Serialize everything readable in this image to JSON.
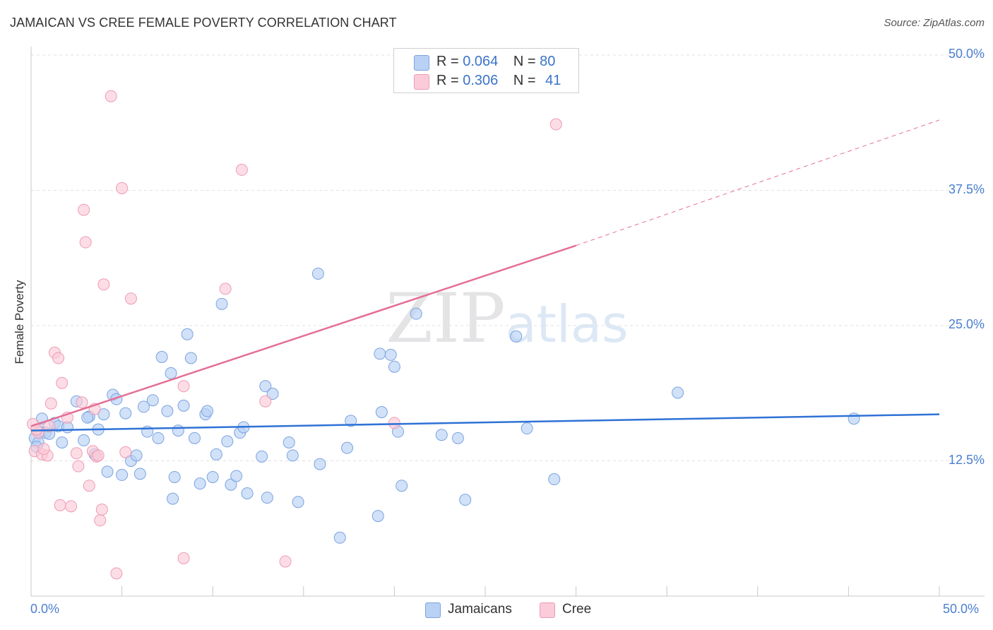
{
  "chart_data": {
    "type": "scatter",
    "title": "JAMAICAN VS CREE FEMALE POVERTY CORRELATION CHART",
    "source": "Source: ZipAtlas.com",
    "xlabel": "",
    "ylabel": "Female Poverty",
    "xlim": [
      0,
      50
    ],
    "ylim": [
      0,
      50
    ],
    "x_tick_labels": [
      "0.0%",
      "50.0%"
    ],
    "y_ticks": [
      12.5,
      25.0,
      37.5,
      50.0
    ],
    "y_tick_labels": [
      "12.5%",
      "25.0%",
      "37.5%",
      "50.0%"
    ],
    "watermark": "ZIPatlas",
    "legend": [
      {
        "r_label": "R =",
        "r_value": "0.064",
        "n_label": "N =",
        "n_value": "80"
      },
      {
        "r_label": "R =",
        "r_value": "0.306",
        "n_label": "N =",
        "n_value": "41"
      }
    ],
    "series": [
      {
        "name": "Jamaicans",
        "color": "#7ba3e0",
        "fill": "#b9d1f4",
        "line_color": "#2f72d6",
        "trend": {
          "x": [
            0,
            50
          ],
          "y": [
            15.3,
            16.8
          ],
          "dashed_to": null
        },
        "points": [
          [
            0.2,
            14.6
          ],
          [
            0.4,
            14.2
          ],
          [
            0.5,
            15.2
          ],
          [
            0.6,
            16.4
          ],
          [
            0.8,
            15.1
          ],
          [
            1.0,
            15.0
          ],
          [
            1.3,
            16.0
          ],
          [
            1.5,
            15.7
          ],
          [
            1.7,
            14.2
          ],
          [
            2.0,
            15.6
          ],
          [
            2.5,
            18.0
          ],
          [
            2.9,
            14.4
          ],
          [
            3.2,
            16.6
          ],
          [
            3.5,
            13.1
          ],
          [
            3.7,
            15.4
          ],
          [
            4.0,
            16.8
          ],
          [
            4.2,
            11.5
          ],
          [
            4.5,
            18.6
          ],
          [
            4.7,
            18.2
          ],
          [
            5.0,
            11.2
          ],
          [
            5.2,
            16.9
          ],
          [
            5.5,
            12.5
          ],
          [
            5.8,
            13.0
          ],
          [
            6.0,
            11.3
          ],
          [
            6.2,
            17.5
          ],
          [
            6.4,
            15.2
          ],
          [
            6.7,
            18.1
          ],
          [
            7.0,
            14.6
          ],
          [
            7.2,
            22.1
          ],
          [
            7.5,
            17.1
          ],
          [
            7.7,
            20.6
          ],
          [
            7.8,
            9.0
          ],
          [
            7.9,
            11.0
          ],
          [
            8.1,
            15.3
          ],
          [
            8.4,
            17.6
          ],
          [
            8.6,
            24.2
          ],
          [
            8.8,
            22.0
          ],
          [
            9.0,
            14.6
          ],
          [
            9.3,
            10.4
          ],
          [
            9.6,
            16.8
          ],
          [
            9.7,
            17.1
          ],
          [
            10.0,
            11.0
          ],
          [
            10.2,
            13.1
          ],
          [
            10.5,
            27.0
          ],
          [
            10.8,
            14.3
          ],
          [
            11.0,
            10.3
          ],
          [
            11.3,
            11.1
          ],
          [
            11.5,
            15.1
          ],
          [
            11.7,
            15.6
          ],
          [
            11.9,
            9.5
          ],
          [
            12.7,
            12.9
          ],
          [
            13.0,
            9.1
          ],
          [
            12.9,
            19.4
          ],
          [
            13.3,
            18.7
          ],
          [
            14.2,
            14.2
          ],
          [
            14.4,
            13.0
          ],
          [
            14.7,
            8.7
          ],
          [
            15.9,
            12.2
          ],
          [
            15.8,
            29.8
          ],
          [
            17.0,
            5.4
          ],
          [
            17.4,
            13.7
          ],
          [
            17.6,
            16.2
          ],
          [
            19.1,
            7.4
          ],
          [
            19.2,
            22.4
          ],
          [
            19.3,
            17.0
          ],
          [
            19.8,
            22.3
          ],
          [
            20.0,
            21.2
          ],
          [
            20.2,
            15.2
          ],
          [
            20.4,
            10.2
          ],
          [
            21.2,
            26.1
          ],
          [
            22.6,
            14.9
          ],
          [
            23.9,
            8.9
          ],
          [
            23.5,
            14.6
          ],
          [
            26.7,
            24.0
          ],
          [
            27.3,
            15.5
          ],
          [
            28.8,
            10.8
          ],
          [
            35.6,
            18.8
          ],
          [
            45.3,
            16.4
          ],
          [
            0.3,
            13.8
          ],
          [
            3.1,
            16.5
          ]
        ]
      },
      {
        "name": "Cree",
        "color": "#ee9bb4",
        "fill": "#fbcbd9",
        "line_color": "#e46f96",
        "trend": {
          "x": [
            0,
            30
          ],
          "y": [
            15.7,
            32.4
          ],
          "dashed_to": {
            "x": 50,
            "y": 44.0
          }
        },
        "points": [
          [
            0.1,
            15.9
          ],
          [
            0.2,
            13.4
          ],
          [
            0.4,
            15.1
          ],
          [
            0.6,
            13.1
          ],
          [
            0.9,
            13.0
          ],
          [
            1.1,
            17.8
          ],
          [
            1.3,
            22.5
          ],
          [
            1.5,
            22.0
          ],
          [
            1.6,
            8.4
          ],
          [
            1.7,
            19.7
          ],
          [
            2.0,
            16.5
          ],
          [
            2.2,
            8.3
          ],
          [
            2.5,
            13.2
          ],
          [
            2.6,
            12.0
          ],
          [
            2.8,
            17.9
          ],
          [
            2.9,
            35.7
          ],
          [
            3.0,
            32.7
          ],
          [
            3.2,
            10.2
          ],
          [
            3.4,
            13.4
          ],
          [
            3.5,
            17.3
          ],
          [
            3.6,
            12.9
          ],
          [
            3.8,
            7.0
          ],
          [
            3.9,
            8.0
          ],
          [
            4.0,
            28.8
          ],
          [
            4.4,
            46.2
          ],
          [
            4.7,
            2.1
          ],
          [
            5.0,
            37.7
          ],
          [
            5.2,
            13.3
          ],
          [
            5.5,
            27.5
          ],
          [
            8.4,
            19.4
          ],
          [
            8.4,
            3.5
          ],
          [
            10.7,
            28.4
          ],
          [
            11.6,
            39.4
          ],
          [
            12.9,
            18.0
          ],
          [
            14.0,
            3.2
          ],
          [
            20.0,
            16.0
          ],
          [
            28.9,
            43.6
          ],
          [
            0.3,
            15.4
          ],
          [
            1.0,
            15.7
          ],
          [
            3.7,
            13.0
          ],
          [
            0.7,
            13.6
          ]
        ]
      }
    ]
  }
}
